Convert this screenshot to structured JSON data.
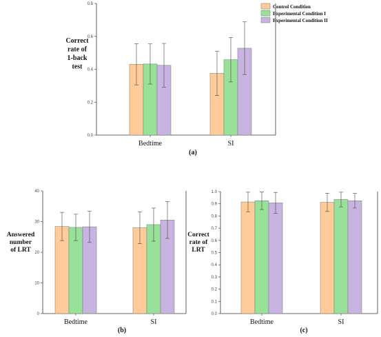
{
  "chart_data": [
    {
      "id": "a",
      "type": "bar",
      "caption": "(a)",
      "ylabel_lines": [
        "Correct",
        "rate of",
        "1-back",
        "test"
      ],
      "categories": [
        "Bedtime",
        "SI"
      ],
      "yticks": [
        "0.0",
        "0.2",
        "0.4",
        "0.6",
        "0.8"
      ],
      "ylim": [
        0,
        0.8
      ],
      "legend_position": "top-right",
      "series": [
        {
          "name": "Control Condition",
          "color": "#FFCC99",
          "values": [
            0.43,
            0.375
          ],
          "errors": [
            0.125,
            0.135
          ]
        },
        {
          "name": "Experimental Condition I",
          "color": "#99E099",
          "values": [
            0.432,
            0.458
          ],
          "errors": [
            0.122,
            0.135
          ]
        },
        {
          "name": "Experimental Condition II",
          "color": "#C8B4E0",
          "values": [
            0.424,
            0.528
          ],
          "errors": [
            0.133,
            0.16
          ]
        }
      ]
    },
    {
      "id": "b",
      "type": "bar",
      "caption": "(b)",
      "ylabel_lines": [
        "Answered",
        "number",
        "of LRT"
      ],
      "categories": [
        "Bedtime",
        "SI"
      ],
      "yticks": [
        "0",
        "10",
        "20",
        "30",
        "40"
      ],
      "ylim": [
        0,
        40
      ],
      "series": [
        {
          "name": "Control Condition",
          "color": "#FFCC99",
          "values": [
            28.4,
            28.0
          ],
          "errors": [
            4.6,
            5.2
          ]
        },
        {
          "name": "Experimental Condition I",
          "color": "#99E099",
          "values": [
            28.1,
            29.0
          ],
          "errors": [
            4.3,
            5.4
          ]
        },
        {
          "name": "Experimental Condition II",
          "color": "#C8B4E0",
          "values": [
            28.3,
            30.5
          ],
          "errors": [
            5.1,
            6.0
          ]
        }
      ]
    },
    {
      "id": "c",
      "type": "bar",
      "caption": "(c)",
      "ylabel_lines": [
        "Correct",
        "rate of",
        "LRT"
      ],
      "categories": [
        "Bedtime",
        "SI"
      ],
      "yticks": [
        "0.0",
        "0.1",
        "0.2",
        "0.3",
        "0.4",
        "0.5",
        "0.6",
        "0.7",
        "0.8",
        "0.9",
        "1.0"
      ],
      "ylim": [
        0,
        1.0
      ],
      "series": [
        {
          "name": "Control Condition",
          "color": "#FFCC99",
          "values": [
            0.915,
            0.912
          ],
          "errors": [
            0.08,
            0.075
          ]
        },
        {
          "name": "Experimental Condition I",
          "color": "#99E099",
          "values": [
            0.925,
            0.935
          ],
          "errors": [
            0.072,
            0.06
          ]
        },
        {
          "name": "Experimental Condition II",
          "color": "#C8B4E0",
          "values": [
            0.908,
            0.925
          ],
          "errors": [
            0.085,
            0.06
          ]
        }
      ]
    }
  ]
}
